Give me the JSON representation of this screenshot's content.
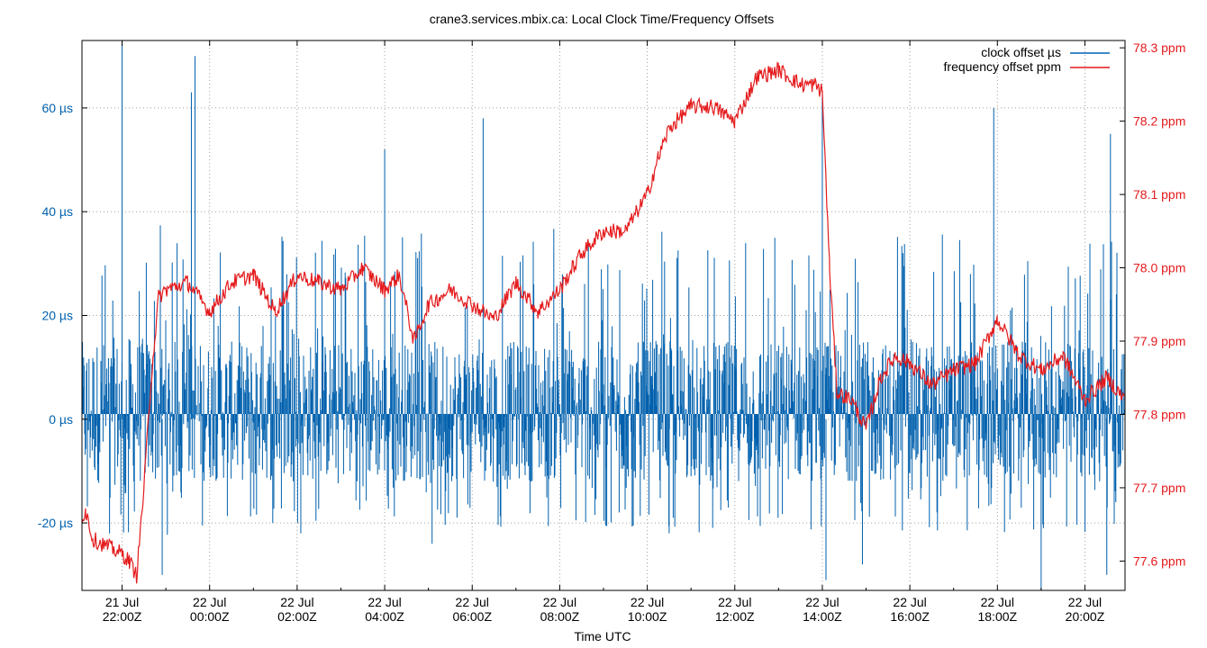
{
  "chart_data": {
    "type": "line",
    "title": "crane3.services.mbix.ca: Local Clock Time/Frequency Offsets",
    "xlabel": "Time UTC",
    "ylabel": "",
    "y2label": "",
    "x_range": [
      "2023-07-21T21:05Z",
      "2023-07-22T20:55Z"
    ],
    "ylim": [
      -33,
      73
    ],
    "y2lim": [
      77.56,
      78.31
    ],
    "grid": true,
    "legend_position": "top-right",
    "x_ticks": [
      {
        "date": "21 Jul",
        "time": "22:00Z"
      },
      {
        "date": "22 Jul",
        "time": "00:00Z"
      },
      {
        "date": "22 Jul",
        "time": "02:00Z"
      },
      {
        "date": "22 Jul",
        "time": "04:00Z"
      },
      {
        "date": "22 Jul",
        "time": "06:00Z"
      },
      {
        "date": "22 Jul",
        "time": "08:00Z"
      },
      {
        "date": "22 Jul",
        "time": "10:00Z"
      },
      {
        "date": "22 Jul",
        "time": "12:00Z"
      },
      {
        "date": "22 Jul",
        "time": "14:00Z"
      },
      {
        "date": "22 Jul",
        "time": "16:00Z"
      },
      {
        "date": "22 Jul",
        "time": "18:00Z"
      },
      {
        "date": "22 Jul",
        "time": "20:00Z"
      }
    ],
    "y_ticks": [
      -20,
      0,
      20,
      40,
      60
    ],
    "y_tick_labels": [
      "-20 µs",
      "0 µs",
      "20 µs",
      "40 µs",
      "60 µs"
    ],
    "y2_ticks": [
      77.6,
      77.7,
      77.8,
      77.9,
      78.0,
      78.1,
      78.2,
      78.3
    ],
    "y2_tick_labels": [
      "77.6 ppm",
      "77.7 ppm",
      "77.8 ppm",
      "77.9 ppm",
      "78.0 ppm",
      "78.1 ppm",
      "78.2 ppm",
      "78.3 ppm"
    ],
    "series": [
      {
        "name": "clock offset µs",
        "axis": "left",
        "color": "#0060ad",
        "envelope": {
          "hours": [
            "21:05",
            "22:00",
            "00:00",
            "02:00",
            "04:00",
            "06:00",
            "08:00",
            "10:00",
            "12:00",
            "14:00",
            "16:00",
            "18:00",
            "20:00",
            "20:55"
          ],
          "typical_min": [
            -12,
            -13,
            -12,
            -12,
            -12,
            -12,
            -12,
            -12,
            -12,
            -12,
            -12,
            -12,
            -12,
            -12
          ],
          "typical_max": [
            15,
            16,
            15,
            15,
            15,
            15,
            15,
            15,
            15,
            15,
            15,
            15,
            15,
            15
          ]
        },
        "spikes": [
          {
            "t": "22:00",
            "v": 73
          },
          {
            "t": "22:55",
            "v": -30
          },
          {
            "t": "23:35",
            "v": 63
          },
          {
            "t": "23:40",
            "v": 70
          },
          {
            "t": "02:05",
            "v": -22
          },
          {
            "t": "04:00",
            "v": 52
          },
          {
            "t": "05:05",
            "v": -24
          },
          {
            "t": "06:15",
            "v": 58
          },
          {
            "t": "10:30",
            "v": -22
          },
          {
            "t": "14:00",
            "v": 63
          },
          {
            "t": "14:05",
            "v": -31
          },
          {
            "t": "14:55",
            "v": -28
          },
          {
            "t": "17:55",
            "v": 60
          },
          {
            "t": "19:00",
            "v": -33
          },
          {
            "t": "20:30",
            "v": -30
          },
          {
            "t": "20:35",
            "v": 55
          }
        ]
      },
      {
        "name": "frequency offset ppm",
        "axis": "right",
        "color": "#e41a1c",
        "x": [
          "21:05",
          "21:10",
          "21:20",
          "21:40",
          "22:00",
          "22:10",
          "22:20",
          "22:30",
          "22:40",
          "22:50",
          "23:00",
          "23:30",
          "00:00",
          "00:30",
          "01:00",
          "01:30",
          "02:00",
          "02:30",
          "03:00",
          "03:30",
          "04:00",
          "04:20",
          "04:40",
          "05:00",
          "05:30",
          "06:00",
          "06:30",
          "07:00",
          "07:30",
          "08:00",
          "08:30",
          "09:00",
          "09:30",
          "10:00",
          "10:15",
          "10:30",
          "11:00",
          "11:30",
          "12:00",
          "12:30",
          "13:00",
          "13:30",
          "13:50",
          "14:00",
          "14:10",
          "14:20",
          "14:40",
          "15:00",
          "15:20",
          "15:40",
          "16:00",
          "16:30",
          "17:00",
          "17:30",
          "18:00",
          "18:30",
          "19:00",
          "19:30",
          "20:00",
          "20:30",
          "20:55"
        ],
        "values": [
          77.66,
          77.67,
          77.63,
          77.62,
          77.61,
          77.6,
          77.58,
          77.7,
          77.85,
          77.96,
          77.97,
          77.98,
          77.94,
          77.98,
          77.99,
          77.94,
          77.99,
          77.98,
          77.97,
          78.0,
          77.97,
          77.99,
          77.9,
          77.95,
          77.97,
          77.95,
          77.93,
          77.98,
          77.94,
          77.97,
          78.02,
          78.05,
          78.05,
          78.1,
          78.15,
          78.19,
          78.22,
          78.22,
          78.2,
          78.26,
          78.27,
          78.25,
          78.25,
          78.24,
          78.0,
          77.83,
          77.82,
          77.78,
          77.85,
          77.88,
          77.87,
          77.84,
          77.86,
          77.87,
          77.93,
          77.88,
          77.86,
          77.88,
          77.82,
          77.85,
          77.82
        ]
      }
    ]
  }
}
